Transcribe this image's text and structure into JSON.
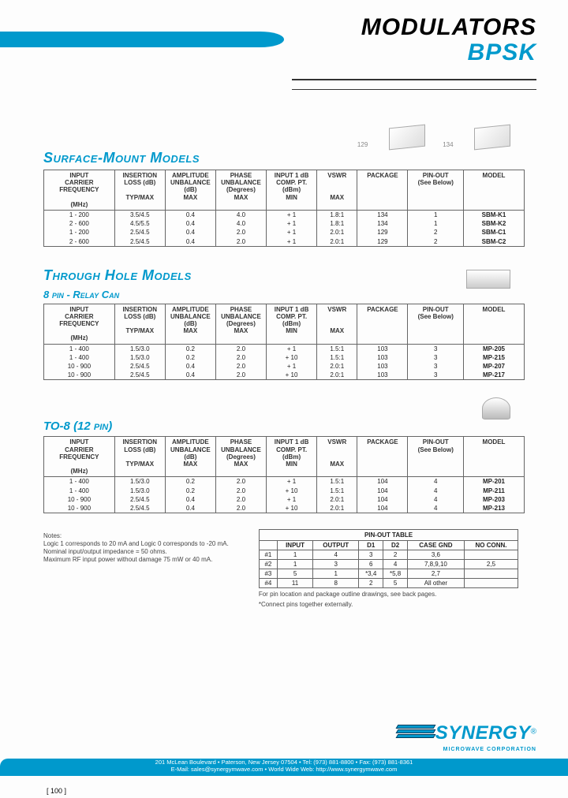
{
  "header": {
    "line1": "MODULATORS",
    "line2": "BPSK"
  },
  "surface": {
    "title": "Surface-Mount Models",
    "img_labels": [
      "129",
      "134"
    ],
    "columns": [
      {
        "h1": "INPUT",
        "h2": "CARRIER FREQUENCY",
        "h3": "",
        "h4": "(MHz)"
      },
      {
        "h1": "INSERTION",
        "h2": "LOSS  (dB)",
        "h3": "",
        "h4": "TYP/MAX"
      },
      {
        "h1": "AMPLITUDE",
        "h2": "UNBALANCE",
        "h3": "(dB)",
        "h4": "MAX"
      },
      {
        "h1": "PHASE",
        "h2": "UNBALANCE",
        "h3": "(Degrees)",
        "h4": "MAX"
      },
      {
        "h1": "INPUT  1 dB",
        "h2": "COMP. PT.",
        "h3": "(dBm)",
        "h4": "MIN"
      },
      {
        "h1": "VSWR",
        "h2": "",
        "h3": "",
        "h4": "MAX"
      },
      {
        "h1": "PACKAGE",
        "h2": "",
        "h3": "",
        "h4": ""
      },
      {
        "h1": "PIN-OUT",
        "h2": "(See Below)",
        "h3": "",
        "h4": ""
      },
      {
        "h1": "MODEL",
        "h2": "",
        "h3": "",
        "h4": ""
      }
    ],
    "rows": [
      [
        "1 - 200",
        "3.5/4.5",
        "0.4",
        "4.0",
        "+ 1",
        "1.8:1",
        "134",
        "1",
        "SBM-K1"
      ],
      [
        "2 - 600",
        "4.5/5.5",
        "0.4",
        "4.0",
        "+ 1",
        "1.8:1",
        "134",
        "1",
        "SBM-K2"
      ],
      [
        "1 - 200",
        "2.5/4.5",
        "0.4",
        "2.0",
        "+ 1",
        "2.0:1",
        "129",
        "2",
        "SBM-C1"
      ],
      [
        "2 - 600",
        "2.5/4.5",
        "0.4",
        "2.0",
        "+ 1",
        "2.0:1",
        "129",
        "2",
        "SBM-C2"
      ]
    ]
  },
  "through": {
    "title": "Through Hole Models",
    "sub": "8 pin - Relay Can",
    "rows": [
      [
        "1 - 400",
        "1.5/3.0",
        "0.2",
        "2.0",
        "+ 1",
        "1.5:1",
        "103",
        "3",
        "MP-205"
      ],
      [
        "1 - 400",
        "1.5/3.0",
        "0.2",
        "2.0",
        "+ 10",
        "1.5:1",
        "103",
        "3",
        "MP-215"
      ],
      [
        "10 - 900",
        "2.5/4.5",
        "0.4",
        "2.0",
        "+ 1",
        "2.0:1",
        "103",
        "3",
        "MP-207"
      ],
      [
        "10 - 900",
        "2.5/4.5",
        "0.4",
        "2.0",
        "+ 10",
        "2.0:1",
        "103",
        "3",
        "MP-217"
      ]
    ]
  },
  "to8": {
    "title": "TO-8  (12 pin)",
    "rows": [
      [
        "1 - 400",
        "1.5/3.0",
        "0.2",
        "2.0",
        "+ 1",
        "1.5:1",
        "104",
        "4",
        "MP-201"
      ],
      [
        "1 - 400",
        "1.5/3.0",
        "0.2",
        "2.0",
        "+ 10",
        "1.5:1",
        "104",
        "4",
        "MP-211"
      ],
      [
        "10 - 900",
        "2.5/4.5",
        "0.4",
        "2.0",
        "+ 1",
        "2.0:1",
        "104",
        "4",
        "MP-203"
      ],
      [
        "10 - 900",
        "2.5/4.5",
        "0.4",
        "2.0",
        "+ 10",
        "2.0:1",
        "104",
        "4",
        "MP-213"
      ]
    ]
  },
  "notes": {
    "heading": "Notes:",
    "l1": "Logic 1 corresponds to  20 mA and Logic 0 corresponds to -20 mA.",
    "l2": "Nominal input/output impedance = 50 ohms.",
    "l3": "Maximum RF input power without damage 75 mW or 40 mA."
  },
  "pinout": {
    "caption": "PIN-OUT TABLE",
    "columns": [
      "",
      "INPUT",
      "OUTPUT",
      "D1",
      "D2",
      "CASE GND",
      "NO CONN."
    ],
    "rows": [
      [
        "#1",
        "1",
        "4",
        "3",
        "2",
        "3,6",
        ""
      ],
      [
        "#2",
        "1",
        "3",
        "6",
        "4",
        "7,8,9,10",
        "2,5"
      ],
      [
        "#3",
        "5",
        "1",
        "*3,4",
        "*5,8",
        "2,7",
        ""
      ],
      [
        "#4",
        "11",
        "8",
        "2",
        "5",
        "All other",
        ""
      ]
    ],
    "note1": "For pin location and package outline drawings, see back pages.",
    "note2": "*Connect pins together externally."
  },
  "footer": {
    "brand": "SYNERGY",
    "sub": "MICROWAVE CORPORATION",
    "addr1": "201 McLean Boulevard • Paterson, New Jersey 07504 • Tel: (973) 881-8800 • Fax: (973) 881-8361",
    "addr2": "E-Mail: sales@synergymwave.com • World Wide Web: http://www.synergymwave.com",
    "page": "[ 100 ]",
    "reg": "®"
  }
}
